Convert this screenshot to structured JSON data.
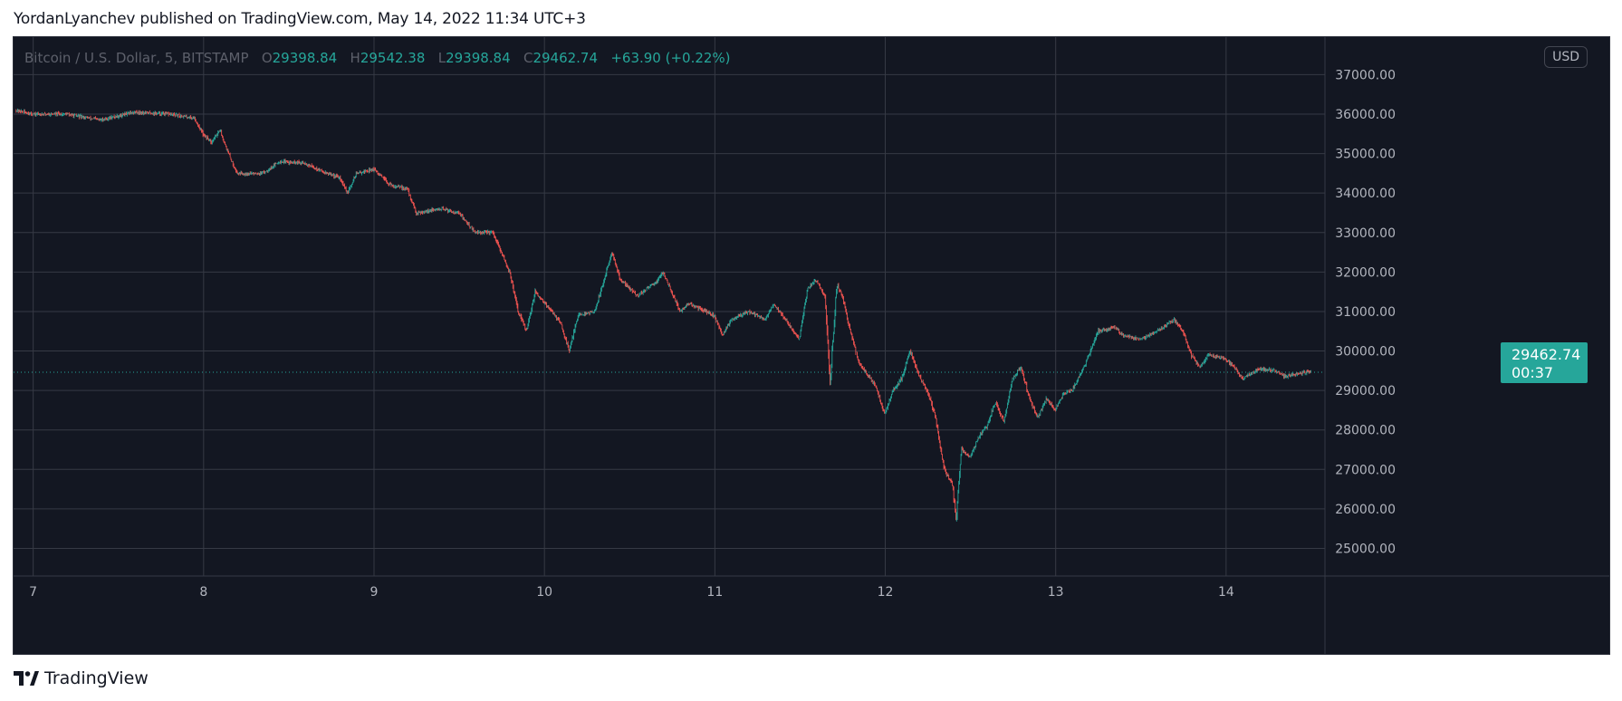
{
  "header": {
    "publisher_line": "YordanLyanchev published on TradingView.com, May 14, 2022 11:34 UTC+3"
  },
  "legend": {
    "symbol": "Bitcoin / U.S. Dollar, 5, BITSTAMP",
    "o_label": "O",
    "o_value": "29398.84",
    "h_label": "H",
    "h_value": "29542.38",
    "l_label": "L",
    "l_value": "29398.84",
    "c_label": "C",
    "c_value": "29462.74",
    "change": "+63.90 (+0.22%)"
  },
  "currency_badge": "USD",
  "price_tag": {
    "price": "29462.74",
    "countdown": "00:37"
  },
  "footer": {
    "brand": "TradingView"
  },
  "colors": {
    "background": "#131722",
    "grid": "#363a45",
    "up": "#26a69a",
    "down": "#ef5350",
    "axis_text": "#b2b5be",
    "last_price_line": "#26a69a"
  },
  "chart_data": {
    "type": "candlestick",
    "title": "Bitcoin / U.S. Dollar, 5, BITSTAMP",
    "x_ticks": [
      "7",
      "8",
      "9",
      "10",
      "11",
      "12",
      "13",
      "14"
    ],
    "x_tick_days": [
      7,
      8,
      9,
      10,
      11,
      12,
      13,
      14
    ],
    "xlim_days": [
      6.885,
      14.58
    ],
    "y_ticks": [
      "25000.00",
      "26000.00",
      "27000.00",
      "28000.00",
      "29000.00",
      "30000.00",
      "31000.00",
      "32000.00",
      "33000.00",
      "34000.00",
      "35000.00",
      "36000.00",
      "37000.00"
    ],
    "ylim": [
      24300,
      37950
    ],
    "last_price": 29462.74,
    "grid": true,
    "series": [
      {
        "points": [
          [
            6.9,
            36100
          ],
          [
            7.0,
            36000
          ],
          [
            7.2,
            36000
          ],
          [
            7.4,
            35850
          ],
          [
            7.6,
            36050
          ],
          [
            7.8,
            36000
          ],
          [
            7.95,
            35900
          ],
          [
            8.0,
            35500
          ],
          [
            8.05,
            35300
          ],
          [
            8.1,
            35600
          ],
          [
            8.15,
            35000
          ],
          [
            8.2,
            34500
          ],
          [
            8.35,
            34500
          ],
          [
            8.45,
            34800
          ],
          [
            8.6,
            34750
          ],
          [
            8.7,
            34550
          ],
          [
            8.8,
            34400
          ],
          [
            8.85,
            34000
          ],
          [
            8.9,
            34500
          ],
          [
            9.0,
            34600
          ],
          [
            9.1,
            34200
          ],
          [
            9.2,
            34100
          ],
          [
            9.25,
            33500
          ],
          [
            9.4,
            33600
          ],
          [
            9.5,
            33500
          ],
          [
            9.6,
            33000
          ],
          [
            9.7,
            33000
          ],
          [
            9.75,
            32500
          ],
          [
            9.8,
            32000
          ],
          [
            9.85,
            31000
          ],
          [
            9.9,
            30500
          ],
          [
            9.95,
            31500
          ],
          [
            10.05,
            31000
          ],
          [
            10.1,
            30700
          ],
          [
            10.15,
            30000
          ],
          [
            10.2,
            30900
          ],
          [
            10.3,
            31000
          ],
          [
            10.4,
            32500
          ],
          [
            10.45,
            31800
          ],
          [
            10.55,
            31400
          ],
          [
            10.65,
            31700
          ],
          [
            10.7,
            32000
          ],
          [
            10.75,
            31500
          ],
          [
            10.8,
            31000
          ],
          [
            10.85,
            31200
          ],
          [
            11.0,
            30900
          ],
          [
            11.05,
            30400
          ],
          [
            11.1,
            30800
          ],
          [
            11.2,
            31000
          ],
          [
            11.3,
            30800
          ],
          [
            11.35,
            31200
          ],
          [
            11.5,
            30300
          ],
          [
            11.55,
            31600
          ],
          [
            11.6,
            31800
          ],
          [
            11.65,
            31400
          ],
          [
            11.68,
            29200
          ],
          [
            11.72,
            31700
          ],
          [
            11.75,
            31400
          ],
          [
            11.8,
            30500
          ],
          [
            11.85,
            29700
          ],
          [
            11.9,
            29400
          ],
          [
            11.95,
            29100
          ],
          [
            12.0,
            28400
          ],
          [
            12.05,
            29000
          ],
          [
            12.1,
            29300
          ],
          [
            12.15,
            30000
          ],
          [
            12.2,
            29400
          ],
          [
            12.25,
            29000
          ],
          [
            12.3,
            28300
          ],
          [
            12.35,
            27000
          ],
          [
            12.4,
            26600
          ],
          [
            12.42,
            25700
          ],
          [
            12.45,
            27500
          ],
          [
            12.5,
            27300
          ],
          [
            12.55,
            27800
          ],
          [
            12.6,
            28100
          ],
          [
            12.65,
            28700
          ],
          [
            12.7,
            28200
          ],
          [
            12.75,
            29300
          ],
          [
            12.8,
            29600
          ],
          [
            12.85,
            28800
          ],
          [
            12.9,
            28300
          ],
          [
            12.95,
            28800
          ],
          [
            13.0,
            28500
          ],
          [
            13.05,
            28900
          ],
          [
            13.1,
            29000
          ],
          [
            13.15,
            29400
          ],
          [
            13.2,
            29900
          ],
          [
            13.25,
            30500
          ],
          [
            13.35,
            30600
          ],
          [
            13.4,
            30400
          ],
          [
            13.5,
            30300
          ],
          [
            13.6,
            30500
          ],
          [
            13.7,
            30800
          ],
          [
            13.75,
            30500
          ],
          [
            13.8,
            29900
          ],
          [
            13.85,
            29600
          ],
          [
            13.9,
            29900
          ],
          [
            14.0,
            29800
          ],
          [
            14.05,
            29600
          ],
          [
            14.1,
            29300
          ],
          [
            14.2,
            29550
          ],
          [
            14.3,
            29500
          ],
          [
            14.35,
            29350
          ],
          [
            14.45,
            29450
          ],
          [
            14.5,
            29462.74
          ]
        ]
      }
    ]
  }
}
